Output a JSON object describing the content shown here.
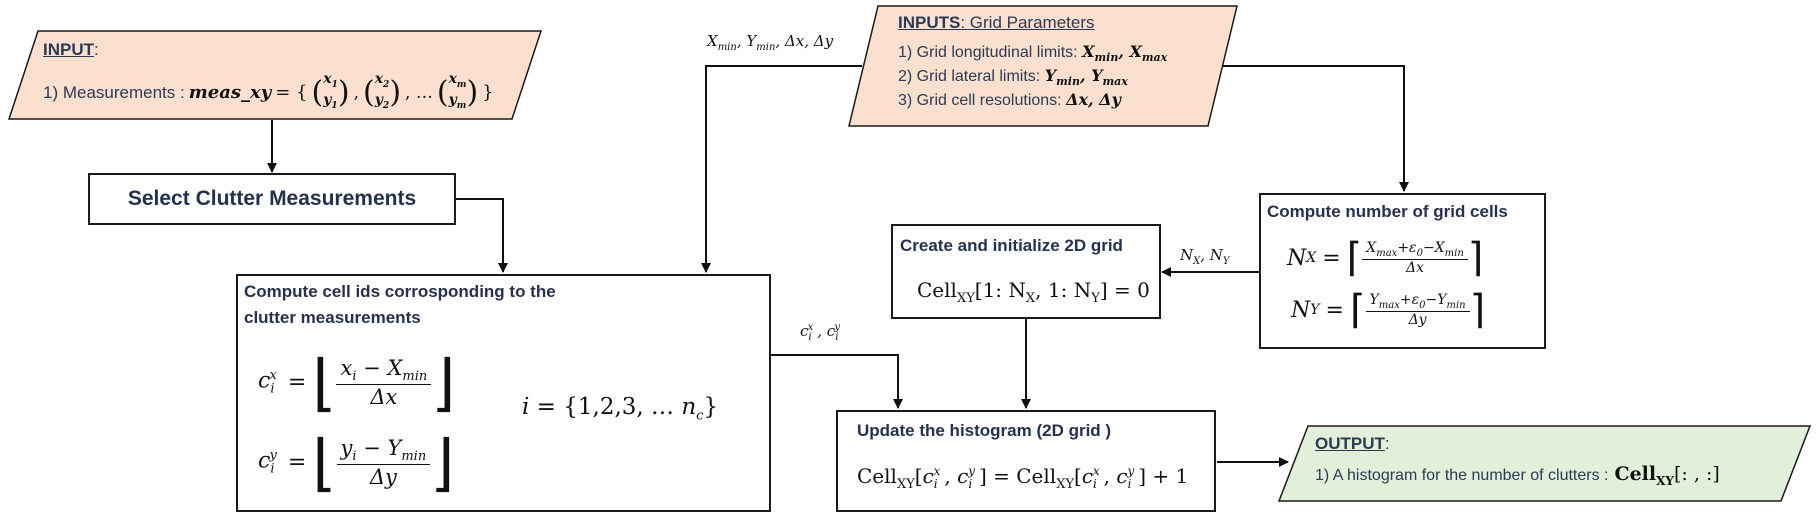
{
  "input_box": {
    "heading": "INPUT",
    "line_prefix": "1) Measurements :",
    "meas_var": "meas_xy",
    "x1": "x",
    "y1": "y",
    "sub1": "1",
    "sub2": "2",
    "subm": "m",
    "ellipsis": "…"
  },
  "select_box": {
    "label": "Select Clutter Measurements"
  },
  "grid_params": {
    "heading": "INPUTS",
    "heading_rest": ": Grid Parameters",
    "line1": "1) Grid longitudinal limits:",
    "line1_math": "X_min, X_max",
    "line2": "2) Grid lateral limits:",
    "line2_math": "Y_min, Y_max",
    "line3": "3) Grid cell resolutions:",
    "line3_math": "Δx, Δy"
  },
  "edge_labels": {
    "grid_to_cellid": "Xmin, Ymin, Δx, Δy",
    "ncells_to_create": "NX, NY",
    "cellid_to_update": "cix, ciy"
  },
  "compute_cells": {
    "title": "Compute number of grid cells",
    "nx_lhs": "N",
    "nx_sub": "X",
    "ny_lhs": "N",
    "ny_sub": "Y",
    "nx_num": "X_max + ε0 − X_min",
    "nx_den": "Δx",
    "ny_num": "Y_max + ε0 − Y_min",
    "ny_den": "Δy"
  },
  "create_grid": {
    "title": "Create and initialize 2D grid",
    "eq": "Cell_XY[1: N_X, 1: N_Y] = 0"
  },
  "cell_ids": {
    "title_line1": "Compute cell ids corrosponding to the",
    "title_line2": "clutter measurements",
    "cx_num": "x_i − X_min",
    "cx_den": "Δx",
    "cy_num": "y_i − Y_min",
    "cy_den": "Δy",
    "index_set": "i = {1,2,3, … n_c}"
  },
  "update_hist": {
    "title": "Update the histogram (2D grid )",
    "eq": "Cell_XY[cix, ciy] = Cell_XY[cix, ciy] + 1"
  },
  "output_box": {
    "heading": "OUTPUT",
    "line": "1) A histogram for the number of clutters :",
    "result": "Cell_XY[: , :]"
  },
  "colors": {
    "input_fill": "#fbe0cf",
    "output_fill": "#e2efd9",
    "stroke": "#1a1a1a",
    "text": "#2b3a55"
  }
}
